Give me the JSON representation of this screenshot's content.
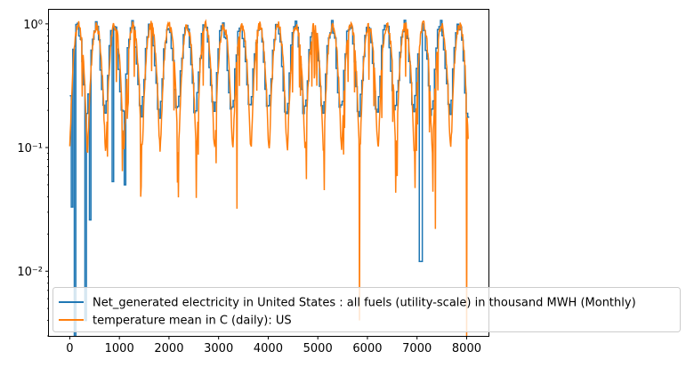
{
  "chart_data": {
    "type": "line",
    "yscale": "log",
    "xlim": [
      -420,
      8440
    ],
    "ylim": [
      0.003,
      1.3
    ],
    "xticks": [
      0,
      1000,
      2000,
      3000,
      4000,
      5000,
      6000,
      7000,
      8000
    ],
    "xtick_labels": [
      "0",
      "1000",
      "2000",
      "3000",
      "4000",
      "5000",
      "6000",
      "7000",
      "8000"
    ],
    "yticks": [
      0.01,
      0.1,
      1
    ],
    "ytick_labels": [
      "10⁻²",
      "10⁻¹",
      "10⁰"
    ],
    "legend_position": "lower right",
    "series": [
      {
        "name": "Net_generated electricity in United States : all fuels (utility-scale) in thousand MWH (Monthly)",
        "color": "#1f77b4",
        "cycle_period_x": 366,
        "start_x": 0,
        "end_x": 8030,
        "approx_range": [
          0.2,
          1.0
        ],
        "notable_dips": [
          {
            "x": 40,
            "y": 0.033
          },
          {
            "x": 100,
            "y": 0.0
          },
          {
            "x": 300,
            "y": 0.004
          },
          {
            "x": 400,
            "y": 0.026
          },
          {
            "x": 860,
            "y": 0.053
          },
          {
            "x": 1110,
            "y": 0.05
          },
          {
            "x": 7060,
            "y": 0.012
          }
        ]
      },
      {
        "name": "temperature mean in C (daily): US",
        "color": "#ff7f0e",
        "cycle_period_x": 366,
        "start_x": 0,
        "end_x": 8030,
        "approx_range": [
          0.1,
          1.0
        ],
        "notable_dips": [
          {
            "x": 1430,
            "y": 0.04
          },
          {
            "x": 3370,
            "y": 0.032
          },
          {
            "x": 5840,
            "y": 0.004
          },
          {
            "x": 7370,
            "y": 0.022
          },
          {
            "x": 8000,
            "y": 0.003
          }
        ]
      }
    ]
  }
}
